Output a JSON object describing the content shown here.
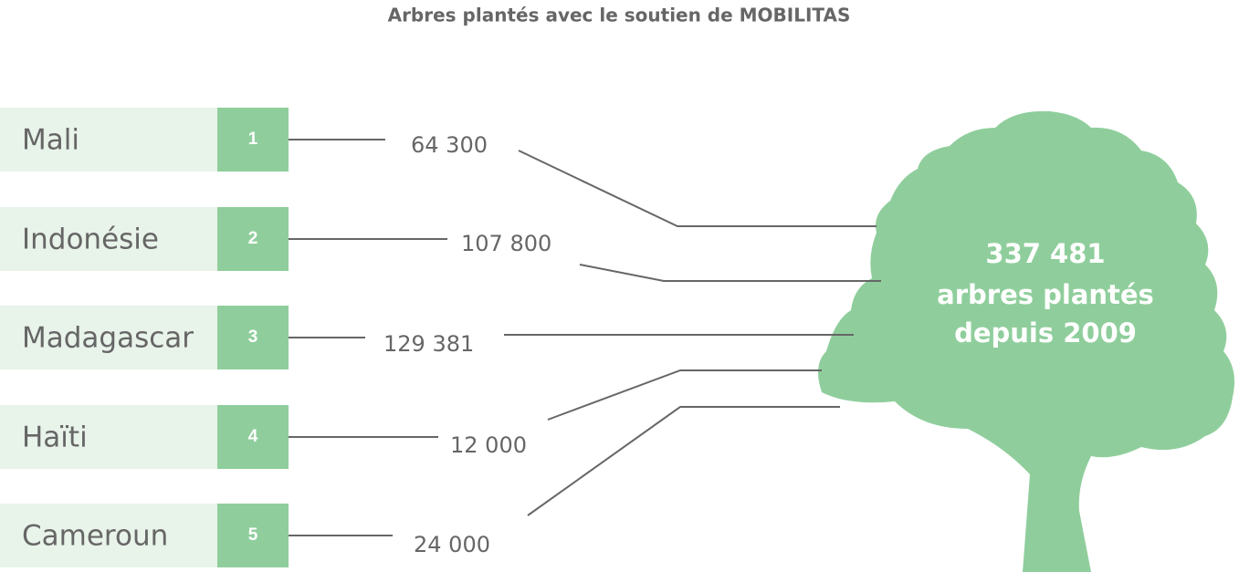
{
  "header": {
    "title": "Arbres plantés avec le soutien de MOBILITAS"
  },
  "rows": [
    {
      "label": "Mali",
      "rank": "1",
      "value": "64 300"
    },
    {
      "label": "Indonésie",
      "rank": "2",
      "value": "107 800"
    },
    {
      "label": "Madagascar",
      "rank": "3",
      "value": "129 381"
    },
    {
      "label": "Haïti",
      "rank": "4",
      "value": "12 000"
    },
    {
      "label": "Cameroun",
      "rank": "5",
      "value": "24 000"
    }
  ],
  "tree": {
    "lines": [
      "337 481",
      "arbres plantés",
      "depuis 2009"
    ]
  }
}
